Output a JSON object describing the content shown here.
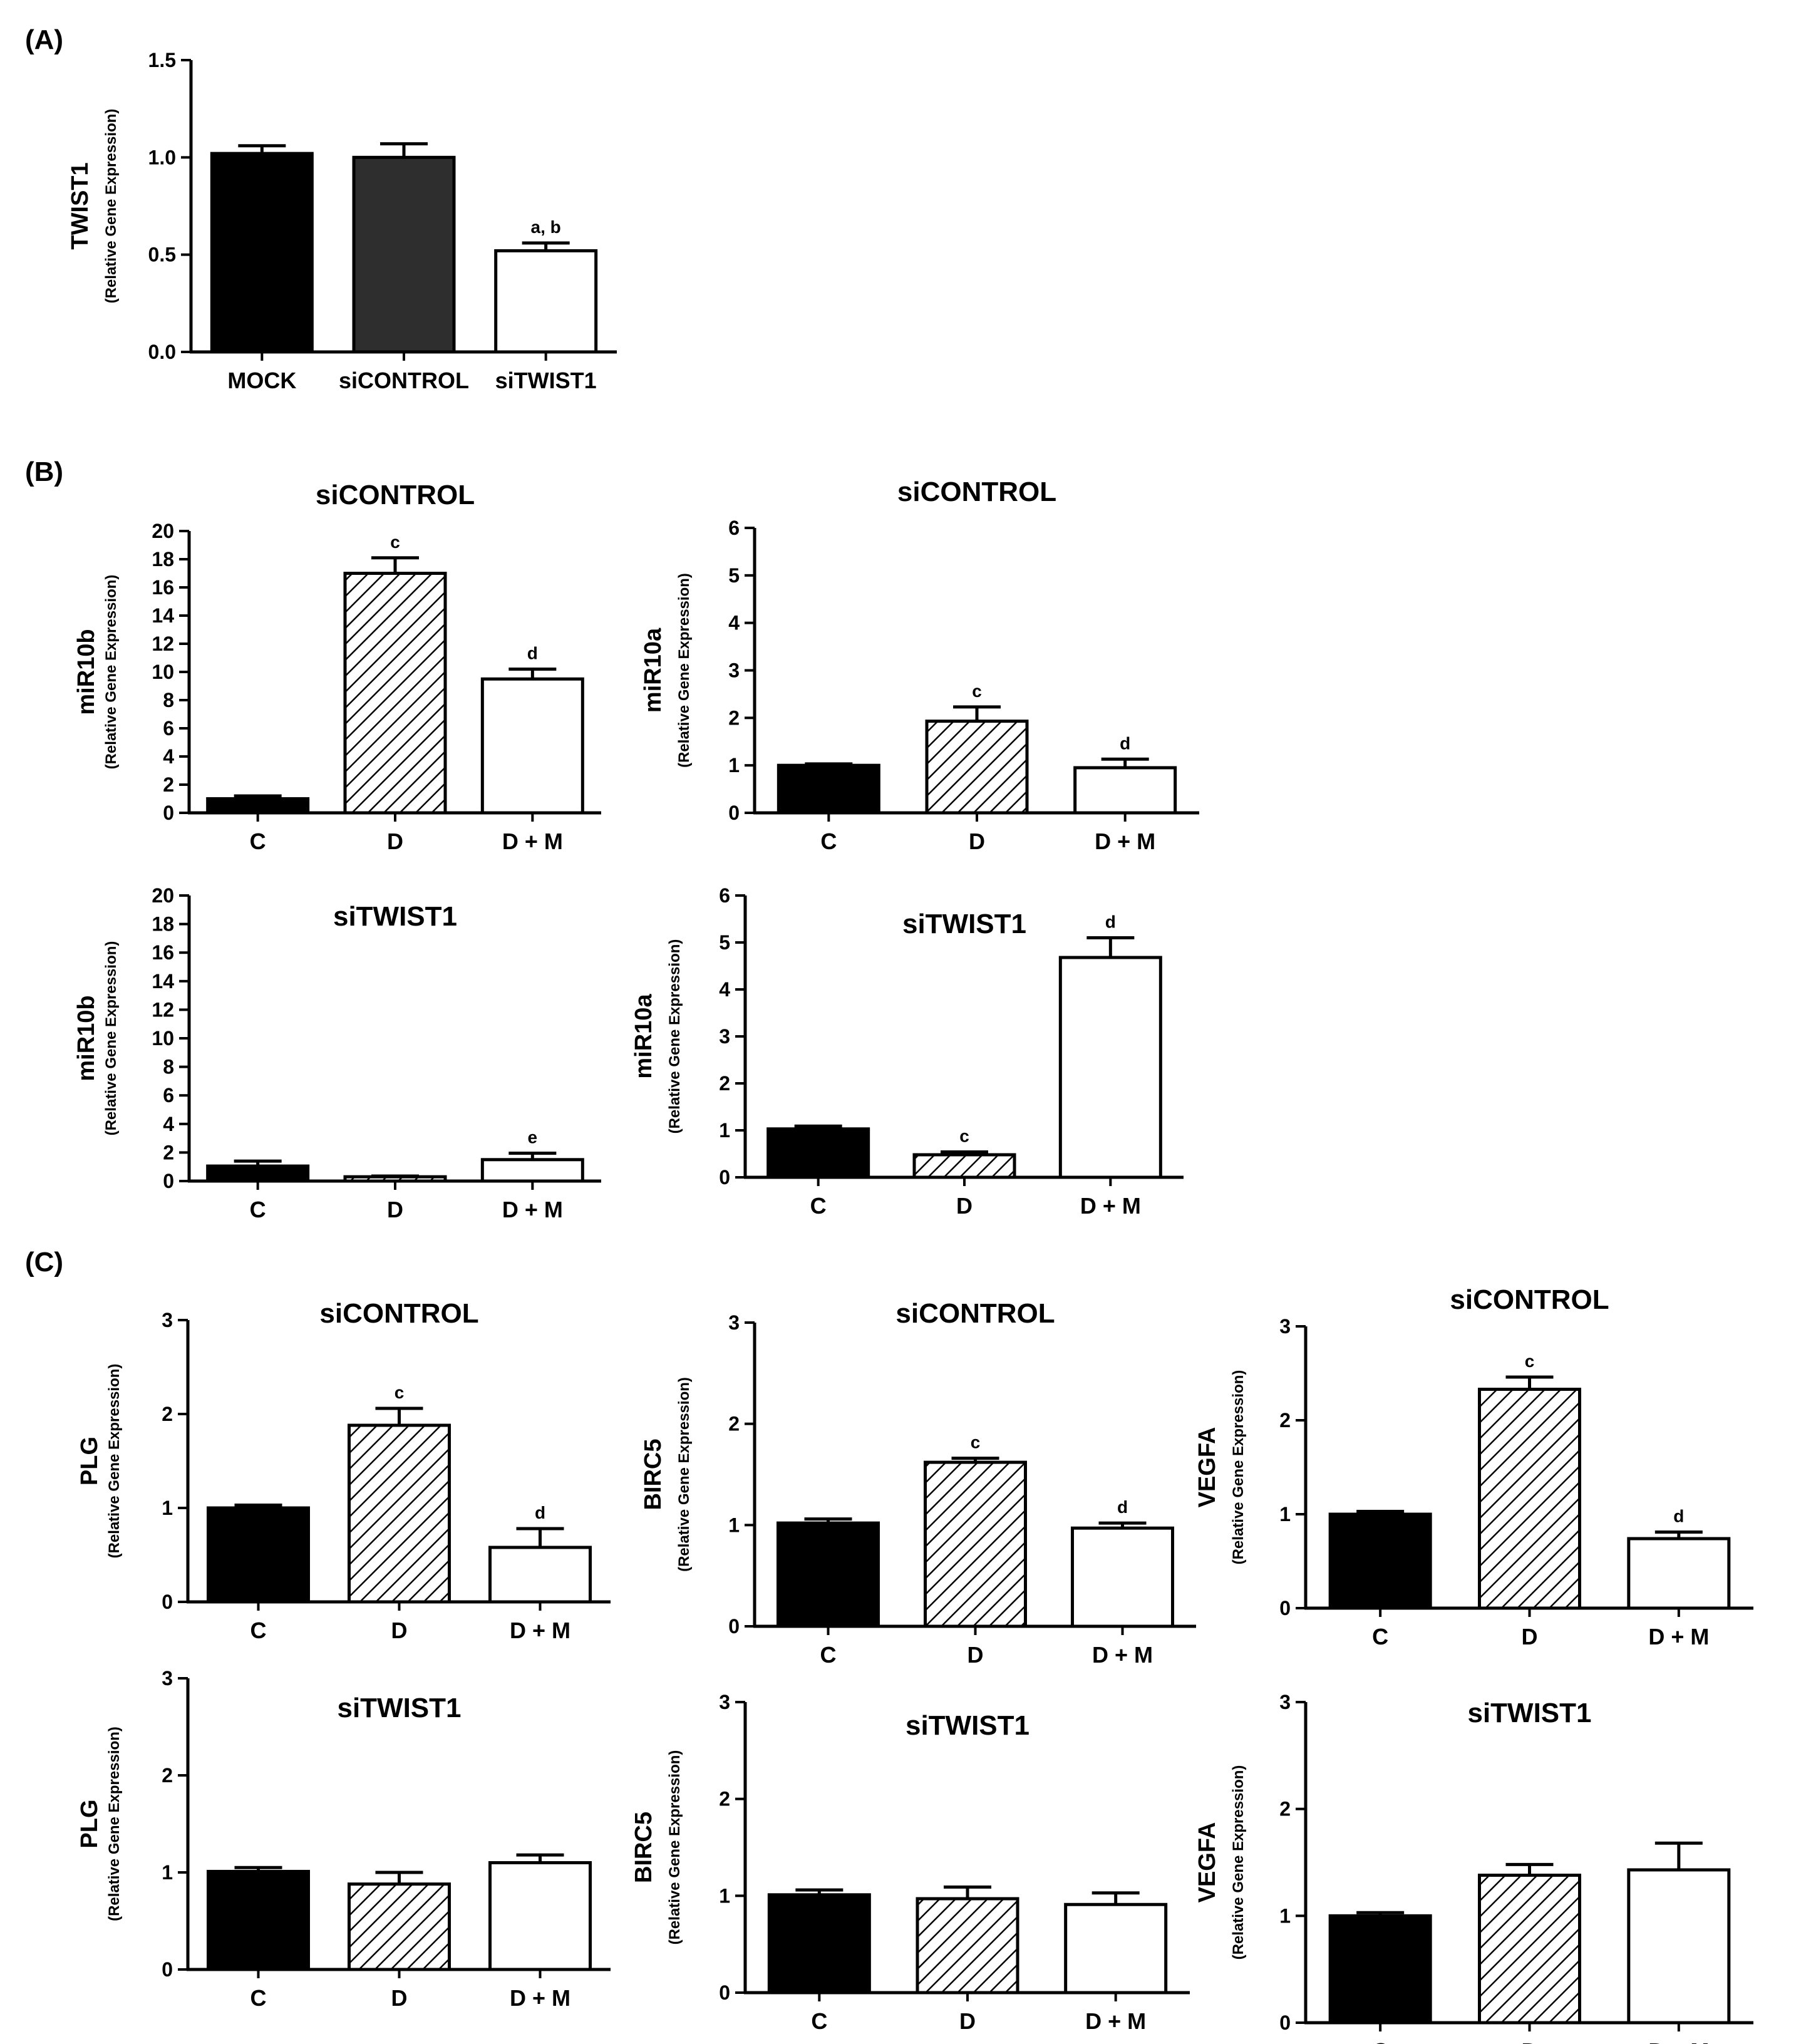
{
  "panels": [
    {
      "label": "(A)"
    },
    {
      "label": "(B)"
    },
    {
      "label": "(C)"
    }
  ],
  "chart_data": [
    {
      "type": "bar",
      "id": "a-twist1",
      "panel": "(A)",
      "title": "",
      "ylabel": "TWIST1",
      "ysublabel": "(Relative Gene Expression)",
      "categories": [
        "MOCK",
        "siCONTROL",
        "siTWIST1"
      ],
      "values": [
        1.02,
        1.0,
        0.52
      ],
      "errors": [
        0.04,
        0.07,
        0.04
      ],
      "annotations": [
        "",
        "",
        "a, b"
      ],
      "ylim": [
        0,
        1.5
      ],
      "yticks": [
        "0.0",
        "0.5",
        "1.0",
        "1.5"
      ],
      "fills": [
        "black",
        "dark",
        "white"
      ]
    },
    {
      "type": "bar",
      "id": "b-mir10b-sicontrol",
      "panel": "(B)",
      "title": "siCONTROL",
      "ylabel": "miR10b",
      "ysublabel": "(Relative Gene Expression)",
      "categories": [
        "C",
        "D",
        "D + M"
      ],
      "values": [
        1.0,
        17.0,
        9.5
      ],
      "errors": [
        0.2,
        1.1,
        0.7
      ],
      "annotations": [
        "",
        "c",
        "d"
      ],
      "ylim": [
        0,
        20
      ],
      "yticks": [
        "0",
        "2",
        "4",
        "6",
        "8",
        "10",
        "12",
        "14",
        "16",
        "18",
        "20"
      ],
      "fills": [
        "black",
        "hatch",
        "white"
      ]
    },
    {
      "type": "bar",
      "id": "b-mir10a-sicontrol",
      "panel": "(B)",
      "title": "siCONTROL",
      "ylabel": "miR10a",
      "ysublabel": "(Relative Gene Expression)",
      "categories": [
        "C",
        "D",
        "D + M"
      ],
      "values": [
        1.0,
        1.93,
        0.95
      ],
      "errors": [
        0.03,
        0.3,
        0.18
      ],
      "annotations": [
        "",
        "c",
        "d"
      ],
      "ylim": [
        0,
        6
      ],
      "yticks": [
        "0",
        "1",
        "2",
        "3",
        "4",
        "5",
        "6"
      ],
      "fills": [
        "black",
        "hatch",
        "white"
      ]
    },
    {
      "type": "bar",
      "id": "b-mir10b-sitwist1",
      "panel": "(B)",
      "title": "siTWIST1",
      "ylabel": "miR10b",
      "ysublabel": "(Relative Gene Expression)",
      "categories": [
        "C",
        "D",
        "D + M"
      ],
      "values": [
        1.05,
        0.3,
        1.5
      ],
      "errors": [
        0.35,
        0.05,
        0.45
      ],
      "annotations": [
        "",
        "",
        "e"
      ],
      "ylim": [
        0,
        20
      ],
      "yticks": [
        "0",
        "2",
        "4",
        "6",
        "8",
        "10",
        "12",
        "14",
        "16",
        "18",
        "20"
      ],
      "fills": [
        "black",
        "hatch",
        "white"
      ]
    },
    {
      "type": "bar",
      "id": "b-mir10a-sitwist1",
      "panel": "(B)",
      "title": "siTWIST1",
      "ylabel": "miR10a",
      "ysublabel": "(Relative Gene Expression)",
      "categories": [
        "C",
        "D",
        "D + M"
      ],
      "values": [
        1.03,
        0.48,
        4.68
      ],
      "errors": [
        0.06,
        0.06,
        0.42
      ],
      "annotations": [
        "",
        "c",
        "d"
      ],
      "ylim": [
        0,
        6
      ],
      "yticks": [
        "0",
        "1",
        "2",
        "3",
        "4",
        "5",
        "6"
      ],
      "fills": [
        "black",
        "hatch",
        "white"
      ]
    },
    {
      "type": "bar",
      "id": "c-plg-sicontrol",
      "panel": "(C)",
      "title": "siCONTROL",
      "ylabel": "PLG",
      "ysublabel": "(Relative Gene Expression)",
      "categories": [
        "C",
        "D",
        "D + M"
      ],
      "values": [
        1.0,
        1.88,
        0.58
      ],
      "errors": [
        0.03,
        0.18,
        0.2
      ],
      "annotations": [
        "",
        "c",
        "d"
      ],
      "ylim": [
        0,
        3
      ],
      "yticks": [
        "0",
        "1",
        "2",
        "3"
      ],
      "fills": [
        "black",
        "hatch",
        "white"
      ]
    },
    {
      "type": "bar",
      "id": "c-birc5-sicontrol",
      "panel": "(C)",
      "title": "siCONTROL",
      "ylabel": "BIRC5",
      "ysublabel": "(Relative Gene Expression)",
      "categories": [
        "C",
        "D",
        "D + M"
      ],
      "values": [
        1.02,
        1.62,
        0.97
      ],
      "errors": [
        0.04,
        0.04,
        0.05
      ],
      "annotations": [
        "",
        "c",
        "d"
      ],
      "ylim": [
        0,
        3
      ],
      "yticks": [
        "0",
        "1",
        "2",
        "3"
      ],
      "fills": [
        "black",
        "hatch",
        "white"
      ]
    },
    {
      "type": "bar",
      "id": "c-vegfa-sicontrol",
      "panel": "(C)",
      "title": "siCONTROL",
      "ylabel": "VEGFA",
      "ysublabel": "(Relative Gene Expression)",
      "categories": [
        "C",
        "D",
        "D + M"
      ],
      "values": [
        1.0,
        2.33,
        0.74
      ],
      "errors": [
        0.03,
        0.13,
        0.07
      ],
      "annotations": [
        "",
        "c",
        "d"
      ],
      "ylim": [
        0,
        3
      ],
      "yticks": [
        "0",
        "1",
        "2",
        "3"
      ],
      "fills": [
        "black",
        "hatch",
        "white"
      ]
    },
    {
      "type": "bar",
      "id": "c-plg-sitwist1",
      "panel": "(C)",
      "title": "siTWIST1",
      "ylabel": "PLG",
      "ysublabel": "(Relative Gene Expression)",
      "categories": [
        "C",
        "D",
        "D + M"
      ],
      "values": [
        1.01,
        0.88,
        1.1
      ],
      "errors": [
        0.04,
        0.12,
        0.08
      ],
      "annotations": [
        "",
        "",
        ""
      ],
      "ylim": [
        0,
        3
      ],
      "yticks": [
        "0",
        "1",
        "2",
        "3"
      ],
      "fills": [
        "black",
        "hatch",
        "white"
      ]
    },
    {
      "type": "bar",
      "id": "c-birc5-sitwist1",
      "panel": "(C)",
      "title": "siTWIST1",
      "ylabel": "BIRC5",
      "ysublabel": "(Relative Gene Expression)",
      "categories": [
        "C",
        "D",
        "D + M"
      ],
      "values": [
        1.01,
        0.97,
        0.91
      ],
      "errors": [
        0.05,
        0.12,
        0.12
      ],
      "annotations": [
        "",
        "",
        ""
      ],
      "ylim": [
        0,
        3
      ],
      "yticks": [
        "0",
        "1",
        "2",
        "3"
      ],
      "fills": [
        "black",
        "hatch",
        "white"
      ]
    },
    {
      "type": "bar",
      "id": "c-vegfa-sitwist1",
      "panel": "(C)",
      "title": "siTWIST1",
      "ylabel": "VEGFA",
      "ysublabel": "(Relative Gene Expression)",
      "categories": [
        "C",
        "D",
        "D + M"
      ],
      "values": [
        1.0,
        1.38,
        1.43
      ],
      "errors": [
        0.03,
        0.1,
        0.25
      ],
      "annotations": [
        "",
        "",
        ""
      ],
      "ylim": [
        0,
        3
      ],
      "yticks": [
        "0",
        "1",
        "2",
        "3"
      ],
      "fills": [
        "black",
        "hatch",
        "white"
      ]
    }
  ]
}
